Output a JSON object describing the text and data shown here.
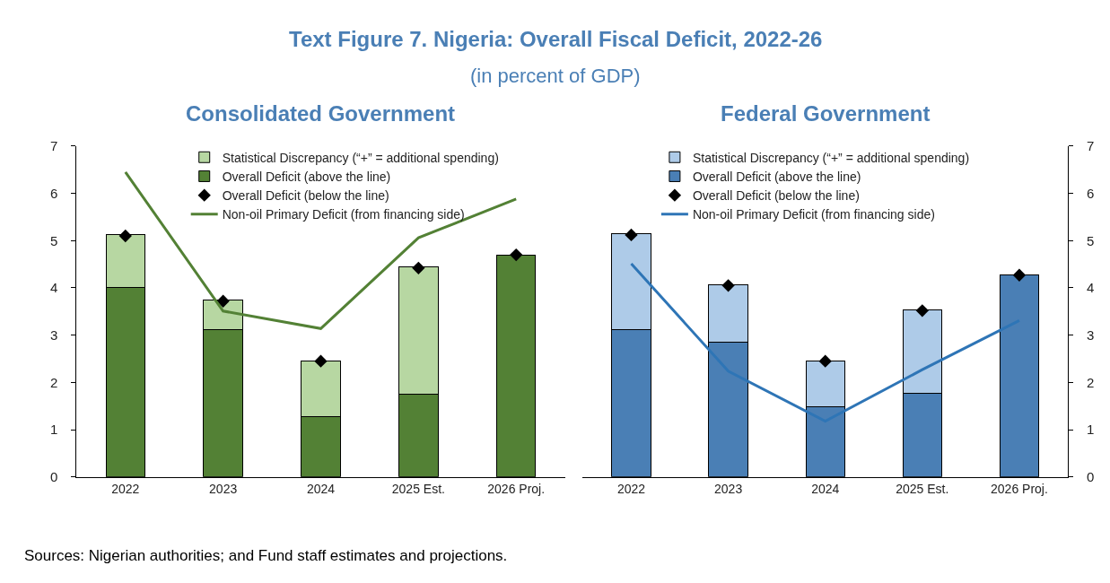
{
  "chart_data": [
    {
      "type": "bar",
      "title": "Consolidated Government",
      "stacked": true,
      "legend": "top",
      "grid": false,
      "annotations": [
        "Text Figure 7. Nigeria: Overall Fiscal Deficit, 2022-26",
        "(in percent of GDP)",
        "Sources: Nigerian authorities; and Fund staff estimates and projections."
      ],
      "categories": [
        "2022",
        "2023",
        "2024",
        "2025 Est.",
        "2026 Proj."
      ],
      "ylim": [
        0,
        7
      ],
      "yticks": [
        0,
        1,
        2,
        3,
        4,
        5,
        6,
        7
      ],
      "series": [
        {
          "name": "Overall Deficit (above the line)",
          "color": "#538135",
          "values": [
            4.0,
            3.12,
            1.27,
            1.76,
            4.7
          ]
        },
        {
          "name": "Statistical Discrepancy (“+” = additional spending)",
          "color": "#b7d7a2",
          "values": [
            1.12,
            0.63,
            1.19,
            2.68,
            null
          ]
        },
        {
          "name": "Overall Deficit (below the line)",
          "type": "scatter",
          "marker": "diamond",
          "color": "#000000",
          "values": [
            5.1,
            3.72,
            2.45,
            4.42,
            4.7
          ]
        },
        {
          "name": "Non-oil Primary Deficit (from financing side)",
          "type": "line",
          "marker": "none",
          "color": "#538135",
          "values": [
            6.45,
            3.51,
            3.14,
            5.06,
            5.88
          ]
        }
      ]
    },
    {
      "type": "bar",
      "title": "Federal Government",
      "stacked": true,
      "legend": "top",
      "grid": false,
      "categories": [
        "2022",
        "2023",
        "2024",
        "2025 Est.",
        "2026 Proj."
      ],
      "y2lim": [
        0,
        7
      ],
      "y2ticks": [
        0,
        1,
        2,
        3,
        4,
        5,
        6,
        7
      ],
      "series": [
        {
          "name": "Overall Deficit (above the line)",
          "axis": "y2",
          "color": "#4a7fb5",
          "values": [
            3.11,
            2.85,
            1.48,
            1.77,
            4.27
          ]
        },
        {
          "name": "Statistical Discrepancy (“+” = additional spending)",
          "axis": "y2",
          "color": "#aecbe8",
          "values": [
            2.03,
            1.22,
            0.98,
            1.76,
            null
          ]
        },
        {
          "name": "Overall Deficit (below the line)",
          "type": "scatter",
          "axis": "y2",
          "marker": "diamond",
          "color": "#000000",
          "values": [
            5.12,
            4.05,
            2.45,
            3.52,
            4.27
          ]
        },
        {
          "name": "Non-oil Primary Deficit (from financing side)",
          "type": "line",
          "axis": "y2",
          "marker": "none",
          "color": "#2e75b6",
          "values": [
            4.51,
            2.24,
            1.18,
            2.27,
            3.31
          ]
        }
      ]
    }
  ]
}
